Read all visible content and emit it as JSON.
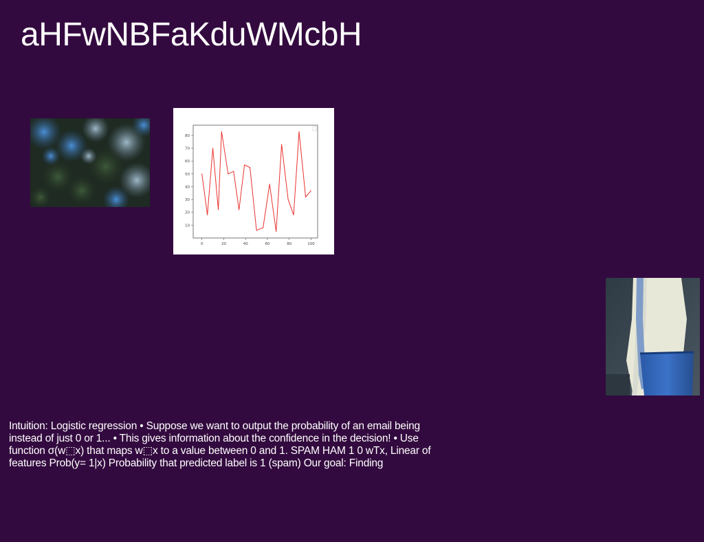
{
  "slide": {
    "title": "aHFwNBFaKduWMcbH",
    "body_text": "Intuition: Logistic regression • Suppose we want to output the probability of an email being instead of just 0 or 1... • This gives information about the confidence in the decision! • Use function σ(w⬚x) that maps w⬚x to a value between 0 and 1. SPAM HAM 1 0 wTx, Linear of features Prob(y= 1|x) Probability that predicted label is 1 (spam) Our goal: Finding"
  },
  "images": {
    "forest_icon": "forest-aerial-photo",
    "cloth_icon": "blue-bucket-white-cloth-photo"
  },
  "colors": {
    "background": "#330a3f",
    "line": "#e8312f"
  },
  "chart_data": {
    "type": "line",
    "title": "",
    "xlabel": "",
    "ylabel": "",
    "x": [
      0,
      5,
      10,
      15,
      18,
      24,
      29,
      34,
      39,
      44,
      50,
      56,
      62,
      68,
      73,
      79,
      84,
      89,
      95,
      100
    ],
    "series": [
      {
        "values": [
          50,
          18,
          70,
          22,
          83,
          50,
          52,
          22,
          57,
          55,
          6,
          8,
          42,
          5,
          73,
          30,
          18,
          83,
          32,
          37
        ]
      }
    ],
    "xlim": [
      -8,
      106
    ],
    "ylim": [
      0,
      88
    ],
    "xticks": [
      0,
      20,
      40,
      60,
      80,
      100
    ],
    "yticks": [
      10,
      20,
      30,
      40,
      50,
      60,
      70,
      80
    ],
    "grid": false,
    "legend": "top-right"
  }
}
